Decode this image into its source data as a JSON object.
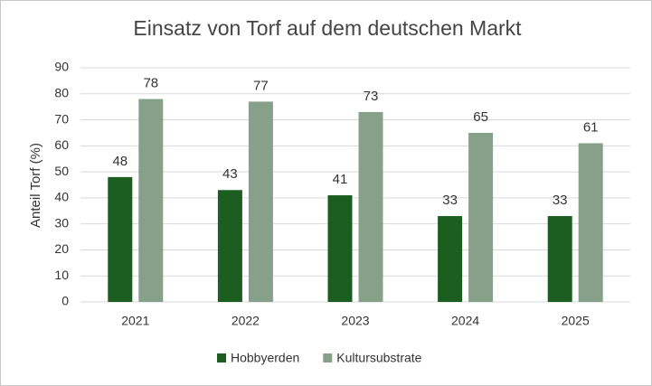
{
  "chart_data": {
    "type": "bar",
    "title": "Einsatz von Torf auf dem deutschen Markt",
    "y_label": "Anteil Torf (%)",
    "categories": [
      "2021",
      "2022",
      "2023",
      "2024",
      "2025"
    ],
    "series": [
      {
        "name": "Hobbyerden",
        "color": "#1b5e20",
        "values": [
          48,
          43,
          41,
          33,
          33
        ]
      },
      {
        "name": "Kultursubstrate",
        "color": "#87a08a",
        "values": [
          78,
          77,
          73,
          65,
          61
        ]
      }
    ],
    "ylim": [
      0,
      90
    ],
    "yticks": [
      0,
      10,
      20,
      30,
      40,
      50,
      60,
      70,
      80,
      90
    ],
    "grid": true,
    "legend": "bottom"
  }
}
